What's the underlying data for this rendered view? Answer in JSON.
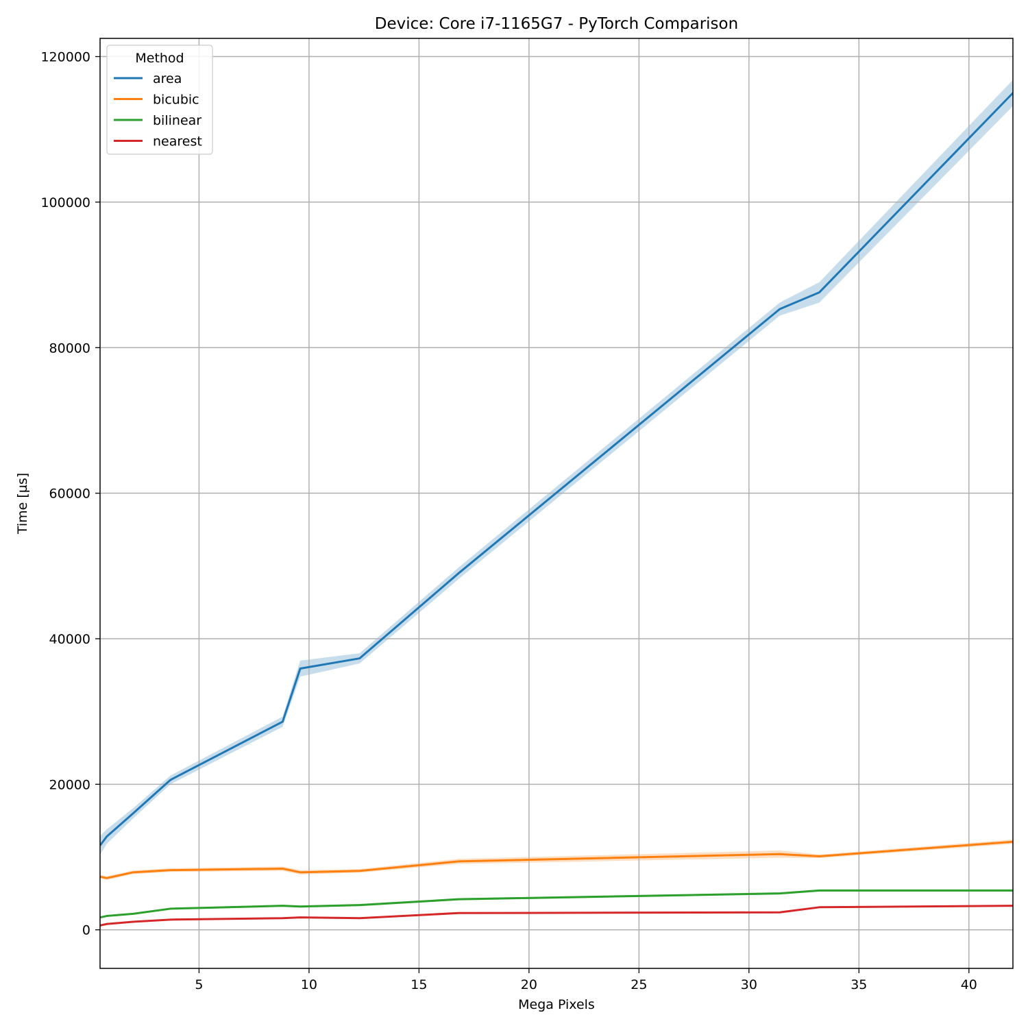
{
  "chart_data": {
    "type": "line",
    "title": "Device: Core i7-1165G7 - PyTorch Comparison",
    "xlabel": "Mega Pixels",
    "ylabel": "Time [µs]",
    "xlim": [
      0.5,
      42
    ],
    "ylim": [
      -5300,
      122500
    ],
    "xticks": [
      5,
      10,
      15,
      20,
      25,
      30,
      35,
      40
    ],
    "yticks": [
      0,
      20000,
      40000,
      60000,
      80000,
      100000,
      120000
    ],
    "grid": true,
    "legend": {
      "title": "Method",
      "placement": "top-left"
    },
    "x": [
      0.5,
      0.8,
      2.0,
      3.7,
      8.8,
      9.6,
      12.3,
      16.8,
      31.4,
      33.2,
      42
    ],
    "series": [
      {
        "name": "area",
        "color": "#1f77b4",
        "values": [
          11600,
          12800,
          16000,
          20600,
          28600,
          35900,
          37300,
          49000,
          85300,
          87600,
          115000
        ],
        "band": [
          1300,
          1000,
          700,
          600,
          700,
          1100,
          700,
          800,
          900,
          1400,
          1800
        ]
      },
      {
        "name": "bicubic",
        "color": "#ff7f0e",
        "values": [
          7300,
          7100,
          7900,
          8200,
          8400,
          7900,
          8100,
          9400,
          10400,
          10100,
          12100
        ],
        "band": [
          250,
          250,
          250,
          250,
          300,
          300,
          250,
          350,
          500,
          250,
          300
        ]
      },
      {
        "name": "bilinear",
        "color": "#2ca02c",
        "values": [
          1700,
          1900,
          2200,
          2900,
          3300,
          3200,
          3400,
          4200,
          5000,
          5400,
          5400
        ],
        "band": [
          120,
          120,
          120,
          120,
          150,
          150,
          150,
          150,
          150,
          150,
          150
        ]
      },
      {
        "name": "nearest",
        "color": "#d62728",
        "values": [
          600,
          800,
          1100,
          1400,
          1600,
          1700,
          1600,
          2300,
          2400,
          3100,
          3300
        ],
        "band": [
          80,
          80,
          80,
          80,
          80,
          80,
          80,
          80,
          80,
          80,
          80
        ]
      }
    ]
  }
}
